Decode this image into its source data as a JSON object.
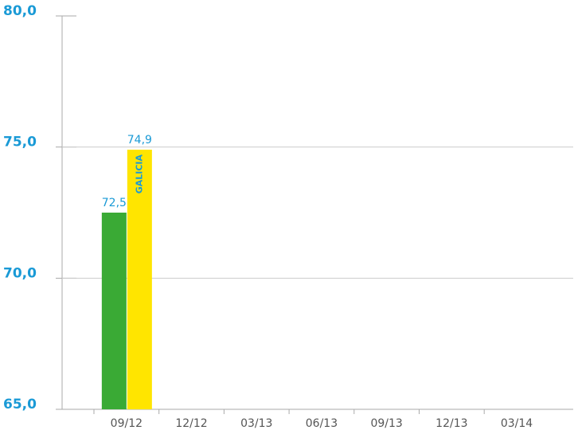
{
  "chart_data": {
    "type": "bar",
    "categories": [
      "09/12",
      "12/12",
      "03/13",
      "06/13",
      "09/13",
      "12/13",
      "03/14"
    ],
    "series": [
      {
        "color": "#3aaa35",
        "values": [
          72.5,
          null,
          null,
          null,
          null,
          null,
          null
        ],
        "value_labels": [
          "72,5",
          null,
          null,
          null,
          null,
          null,
          null
        ]
      },
      {
        "name": "GALICIA",
        "color": "#ffe500",
        "values": [
          74.9,
          null,
          null,
          null,
          null,
          null,
          null
        ],
        "value_labels": [
          "74,9",
          null,
          null,
          null,
          null,
          null,
          null
        ]
      }
    ],
    "ylim": [
      65,
      80
    ],
    "yticks": [
      {
        "value": 65,
        "label": "65,0"
      },
      {
        "value": 70,
        "label": "70,0"
      },
      {
        "value": 75,
        "label": "75,0"
      },
      {
        "value": 80,
        "label": "80,0"
      }
    ],
    "grid": true
  }
}
